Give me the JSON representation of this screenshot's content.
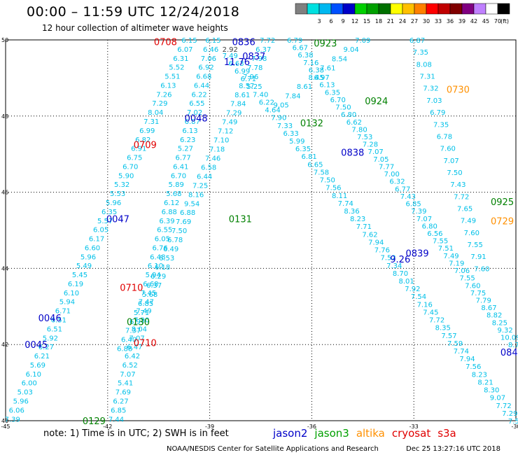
{
  "header": {
    "title": "00:00  –  11:59 UTC 12/24/2018",
    "subtitle": "12 hour collection of altimeter wave heights"
  },
  "colorbar": {
    "unit": "(ft)",
    "bins": [
      {
        "label": "",
        "color": "#808080"
      },
      {
        "label": "3",
        "color": "#00e0e0"
      },
      {
        "label": "6",
        "color": "#00b8f0"
      },
      {
        "label": "9",
        "color": "#0050ff"
      },
      {
        "label": "12",
        "color": "#0000c8"
      },
      {
        "label": "15",
        "color": "#00d000"
      },
      {
        "label": "18",
        "color": "#00a000"
      },
      {
        "label": "21",
        "color": "#007000"
      },
      {
        "label": "24",
        "color": "#ffff00"
      },
      {
        "label": "27",
        "color": "#ffc000"
      },
      {
        "label": "30",
        "color": "#ff8000"
      },
      {
        "label": "33",
        "color": "#ff0000"
      },
      {
        "label": "36",
        "color": "#c00000"
      },
      {
        "label": "39",
        "color": "#800000"
      },
      {
        "label": "42",
        "color": "#800080"
      },
      {
        "label": "45",
        "color": "#c080ff"
      },
      {
        "label": "70",
        "color": "#ffffff"
      },
      {
        "label": "",
        "color": "#000000"
      }
    ]
  },
  "axes": {
    "lon_ticks": [
      -45,
      -42,
      -39,
      -36,
      -33,
      -30
    ],
    "lat_ticks": [
      40,
      42,
      44,
      46,
      48,
      50
    ],
    "lon_range": [
      -45,
      -30
    ],
    "lat_range": [
      40,
      50
    ]
  },
  "colors": {
    "val_cyan": "#00c0e8",
    "val_blue": "#0000c8",
    "jason2": "#0000c8",
    "jason3": "#008000",
    "altika": "#ff9000",
    "cryosat": "#e00000",
    "s3a": "#e00000"
  },
  "tracks": [
    {
      "name": "track-a",
      "from": [
        -44.8,
        40.05
      ],
      "to": [
        -39.6,
        50.0
      ],
      "values": [
        "7.39",
        "6.06",
        "5.96",
        "5.03",
        "6.00",
        "6.10",
        "5.69",
        "6.21",
        "6.27",
        "5.92",
        "6.51",
        "6.51",
        "6.71",
        "5.94",
        "6.10",
        "6.19",
        "5.45",
        "5.49",
        "5.96",
        "6.60",
        "6.17",
        "6.05",
        "5.57",
        "6.35",
        "5.96",
        "5.53",
        "5.32",
        "5.90",
        "6.70",
        "6.75",
        "6.91",
        "6.82",
        "6.99",
        "7.31",
        "8.04",
        "7.29",
        "7.26",
        "6.13",
        "5.51",
        "5.52",
        "6.31",
        "6.07",
        "6.15"
      ]
    },
    {
      "name": "track-b",
      "from": [
        -41.75,
        40.05
      ],
      "to": [
        -38.9,
        50.0
      ],
      "values": [
        "7.44",
        "6.85",
        "6.27",
        "7.69",
        "5.41",
        "7.07",
        "6.52",
        "6.42",
        "6.47",
        "7.07",
        "8.04",
        "7.20",
        "7.49",
        "7.47",
        "7.45",
        "6.68",
        "5.94",
        "6.10",
        "6.48",
        "6.76",
        "6.05",
        "6.55",
        "6.39",
        "6.88",
        "6.12",
        "5.68",
        "5.89",
        "6.70",
        "6.41",
        "6.77",
        "5.27",
        "6.23",
        "6.13",
        "6.87",
        "7.02",
        "6.55",
        "6.22",
        "6.44",
        "6.68",
        "6.92",
        "7.06",
        "6.46",
        "6.15"
      ]
    },
    {
      "name": "track-c",
      "from": [
        -41.5,
        41.9
      ],
      "to": [
        -37.3,
        50.0
      ],
      "values": [
        "6.88",
        "6.40",
        "7.37",
        "6.97",
        "5.71",
        "6.85",
        "5.68",
        "6.37",
        "6.29",
        "6.18",
        "6.53",
        "6.49",
        "6.78",
        "7.50",
        "7.69",
        "6.88",
        "9.54",
        "8.16",
        "7.25",
        "6.44",
        "6.58",
        "7.46",
        "7.18",
        "7.10",
        "7.12",
        "7.49",
        "7.29",
        "7.84",
        "8.61",
        "8.57",
        "7.96",
        "7.78",
        "7.98",
        "6.37",
        "7.72"
      ]
    },
    {
      "name": "track-d",
      "from": [
        -38.4,
        49.6
      ],
      "to": [
        -30.0,
        40.0
      ],
      "values": [
        "7.49",
        "6.63",
        "6.99",
        "6.71",
        "5.25",
        "7.40",
        "6.22",
        "4.64",
        "7.90",
        "7.33",
        "6.33",
        "5.99",
        "6.35",
        "6.81",
        "6.65",
        "7.58",
        "7.50",
        "7.56",
        "8.11",
        "7.74",
        "8.36",
        "8.23",
        "7.71",
        "7.62",
        "7.94",
        "7.76",
        "7.52",
        "7.34",
        "8.70",
        "8.01",
        "7.92",
        "7.54",
        "7.16",
        "7.45",
        "7.72",
        "8.35",
        "7.57",
        "7.59",
        "7.74",
        "7.94",
        "7.56",
        "8.23",
        "8.21",
        "8.30",
        "9.07",
        "7.72",
        "7.29",
        "7.56"
      ]
    },
    {
      "name": "track-e",
      "from": [
        -36.9,
        48.3
      ],
      "to": [
        -34.5,
        50.0
      ],
      "values": [
        "9.05",
        "7.84",
        "8.61",
        "8.45",
        "7.61",
        "8.54",
        "9.04",
        "7.09"
      ]
    },
    {
      "name": "track-f",
      "from": [
        -36.5,
        50.0
      ],
      "to": [
        -30.0,
        42.0
      ],
      "values": [
        "6.79",
        "6.67",
        "6.38",
        "7.16",
        "6.38",
        "6.97",
        "6.13",
        "6.35",
        "6.70",
        "7.50",
        "6.80",
        "6.62",
        "7.80",
        "7.53",
        "7.28",
        "7.07",
        "7.05",
        "7.77",
        "7.00",
        "6.32",
        "6.77",
        "7.43",
        "6.85",
        "7.39",
        "7.07",
        "6.80",
        "6.56",
        "7.55",
        "7.51",
        "7.49",
        "7.19",
        "7.06",
        "7.55",
        "7.60",
        "7.75",
        "7.79",
        "8.67",
        "8.82",
        "8.25",
        "9.32",
        "10.09",
        "8.76"
      ]
    },
    {
      "name": "track-g",
      "from": [
        -32.9,
        50.0
      ],
      "to": [
        -31.0,
        44.0
      ],
      "values": [
        "6.87",
        "7.35",
        "8.08",
        "7.31",
        "7.32",
        "7.03",
        "6.79",
        "7.35",
        "6.78",
        "7.60",
        "7.07",
        "7.50",
        "7.43",
        "7.72",
        "7.65",
        "7.49",
        "7.60",
        "7.55",
        "7.91",
        "7.60"
      ]
    }
  ],
  "labels": [
    {
      "text": "0708",
      "color": "cryosat",
      "lon": -40.3,
      "lat": 49.95
    },
    {
      "text": "0836",
      "color": "jason2",
      "lon": -38.0,
      "lat": 49.95
    },
    {
      "text": "0837",
      "color": "jason2",
      "lon": -37.7,
      "lat": 49.58
    },
    {
      "text": "2.92",
      "color": "gray",
      "lon": -38.4,
      "lat": 49.78
    },
    {
      "text": "11.76",
      "color": "jason2",
      "lon": -38.2,
      "lat": 49.43
    },
    {
      "text": "0923",
      "color": "jason3",
      "lon": -35.6,
      "lat": 49.92
    },
    {
      "text": "0730",
      "color": "altika",
      "lon": -31.7,
      "lat": 48.7
    },
    {
      "text": "0924",
      "color": "jason3",
      "lon": -34.1,
      "lat": 48.4
    },
    {
      "text": "0048",
      "color": "jason2",
      "lon": -39.4,
      "lat": 47.95
    },
    {
      "text": "0132",
      "color": "jason3",
      "lon": -36.0,
      "lat": 47.82
    },
    {
      "text": "0709",
      "color": "cryosat",
      "lon": -40.9,
      "lat": 47.25
    },
    {
      "text": "0838",
      "color": "jason2",
      "lon": -34.8,
      "lat": 47.05
    },
    {
      "text": "0925",
      "color": "jason3",
      "lon": -30.4,
      "lat": 45.75
    },
    {
      "text": "0047",
      "color": "jason2",
      "lon": -41.7,
      "lat": 45.3
    },
    {
      "text": "0131",
      "color": "jason3",
      "lon": -38.1,
      "lat": 45.3
    },
    {
      "text": "0729",
      "color": "altika",
      "lon": -30.4,
      "lat": 45.25
    },
    {
      "text": "0839",
      "color": "jason2",
      "lon": -32.9,
      "lat": 44.4
    },
    {
      "text": "9.26",
      "color": "jason2",
      "lon": -33.4,
      "lat": 44.25
    },
    {
      "text": "0710",
      "color": "cryosat",
      "lon": -41.3,
      "lat": 43.5
    },
    {
      "text": "0046",
      "color": "jason2",
      "lon": -43.7,
      "lat": 42.7
    },
    {
      "text": "0130",
      "color": "jason3",
      "lon": -41.1,
      "lat": 42.6
    },
    {
      "text": "0710",
      "color": "cryosat",
      "lon": -40.9,
      "lat": 42.05
    },
    {
      "text": "0045",
      "color": "jason2",
      "lon": -44.1,
      "lat": 42.0
    },
    {
      "text": "084",
      "color": "jason2",
      "lon": -30.2,
      "lat": 41.8
    },
    {
      "text": "0129",
      "color": "jason3",
      "lon": -42.4,
      "lat": 40.0
    }
  ],
  "footer": {
    "note": "note:  1) Time is in UTC;  2) SWH is in feet",
    "legend": [
      {
        "name": "jason2",
        "color": "#0000c8"
      },
      {
        "name": "jason3",
        "color": "#00a000"
      },
      {
        "name": "altika",
        "color": "#ff9000"
      },
      {
        "name": "cryosat",
        "color": "#e00000"
      },
      {
        "name": "s3a",
        "color": "#e00000"
      }
    ],
    "credit": "NOAA/NESDIS Center for Satellite Applications and Research",
    "timestamp": "Dec 25 13:27:16 UTC 2018"
  }
}
